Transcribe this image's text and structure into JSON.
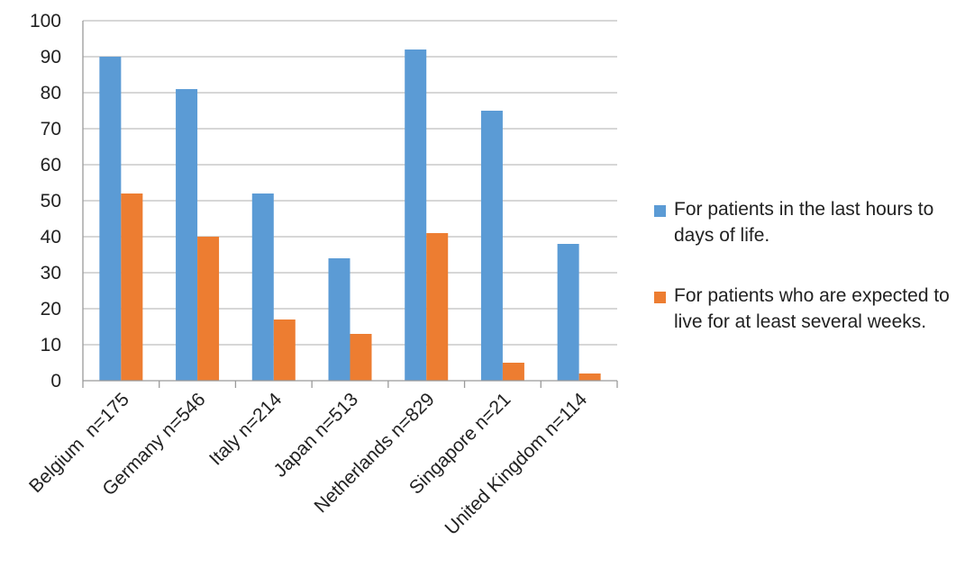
{
  "chart_data": {
    "type": "bar",
    "categories": [
      "Belgium  n=175",
      "Germany n=546",
      "Italy n=214",
      "Japan n=513",
      "Netherlands n=829",
      "Singapore n=21",
      "United Kingdom n=114"
    ],
    "series": [
      {
        "name": "For patients in the last hours to days of life.",
        "color": "#5b9bd5",
        "values": [
          90,
          81,
          52,
          34,
          92,
          75,
          38
        ]
      },
      {
        "name": "For patients who are expected to live for at least several weeks.",
        "color": "#ed7d31",
        "values": [
          52,
          40,
          17,
          13,
          41,
          5,
          2
        ]
      }
    ],
    "yticks": [
      0,
      10,
      20,
      30,
      40,
      50,
      60,
      70,
      80,
      90,
      100
    ],
    "ylim": [
      0,
      100
    ],
    "grid": true,
    "legend_position": "right"
  }
}
